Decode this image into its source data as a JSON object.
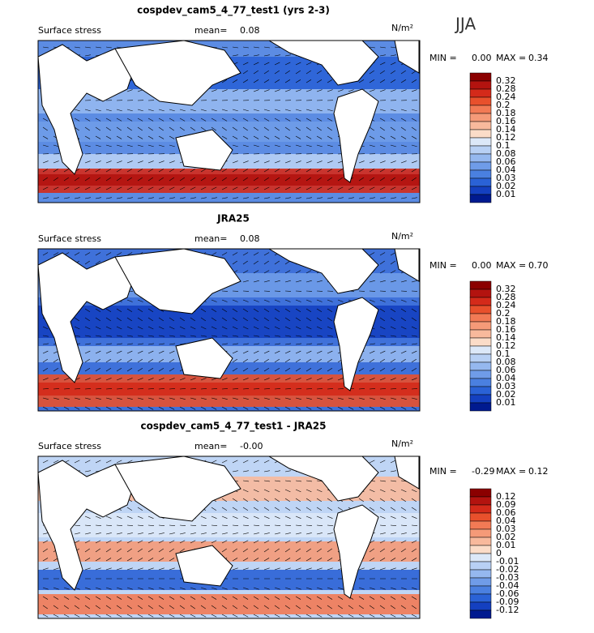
{
  "season": "JJA",
  "panels": [
    {
      "title": "cospdev_cam5_4_77_test1 (yrs 2-3)",
      "field": "Surface stress",
      "mean_label": "mean=",
      "mean": "0.08",
      "units": "N/m²",
      "min_label": "MIN =",
      "min": "0.00",
      "max_label": "MAX =",
      "max": "0.34",
      "colorbar": {
        "labels": [
          "0.32",
          "0.28",
          "0.24",
          "0.2",
          "0.18",
          "0.16",
          "0.14",
          "0.12",
          "0.1",
          "0.08",
          "0.06",
          "0.04",
          "0.03",
          "0.02",
          "0.01"
        ],
        "colors": [
          "#8b0000",
          "#b3130f",
          "#d42a1a",
          "#e8502c",
          "#f27a55",
          "#f59a78",
          "#f8b99c",
          "#fbdcc8",
          "#dce8f8",
          "#b8d0f4",
          "#95b8ef",
          "#6f9ce8",
          "#4a80e0",
          "#2a62d6",
          "#1440c0",
          "#001a8f"
        ]
      }
    },
    {
      "title": "JRA25",
      "field": "Surface stress",
      "mean_label": "mean=",
      "mean": "0.08",
      "units": "N/m²",
      "min_label": "MIN =",
      "min": "0.00",
      "max_label": "MAX =",
      "max": "0.70",
      "colorbar": {
        "labels": [
          "0.32",
          "0.28",
          "0.24",
          "0.2",
          "0.18",
          "0.16",
          "0.14",
          "0.12",
          "0.1",
          "0.08",
          "0.06",
          "0.04",
          "0.03",
          "0.02",
          "0.01"
        ],
        "colors": [
          "#8b0000",
          "#b3130f",
          "#d42a1a",
          "#e8502c",
          "#f27a55",
          "#f59a78",
          "#f8b99c",
          "#fbdcc8",
          "#dce8f8",
          "#b8d0f4",
          "#95b8ef",
          "#6f9ce8",
          "#4a80e0",
          "#2a62d6",
          "#1440c0",
          "#001a8f"
        ]
      }
    },
    {
      "title": "cospdev_cam5_4_77_test1 - JRA25",
      "field": "Surface stress",
      "mean_label": "mean=",
      "mean": "-0.00",
      "units": "N/m²",
      "min_label": "MIN =",
      "min": "-0.29",
      "max_label": "MAX =",
      "max": "0.12",
      "colorbar": {
        "labels": [
          "0.12",
          "0.09",
          "0.06",
          "0.04",
          "0.03",
          "0.02",
          "0.01",
          "0",
          "-0.01",
          "-0.02",
          "-0.03",
          "-0.04",
          "-0.06",
          "-0.09",
          "-0.12"
        ],
        "colors": [
          "#8b0000",
          "#b3130f",
          "#d42a1a",
          "#e8502c",
          "#f27a55",
          "#f59a78",
          "#f8b99c",
          "#fbdcc8",
          "#dce8f8",
          "#b8d0f4",
          "#95b8ef",
          "#6f9ce8",
          "#4a80e0",
          "#2a62d6",
          "#1440c0",
          "#001a8f"
        ]
      }
    }
  ]
}
